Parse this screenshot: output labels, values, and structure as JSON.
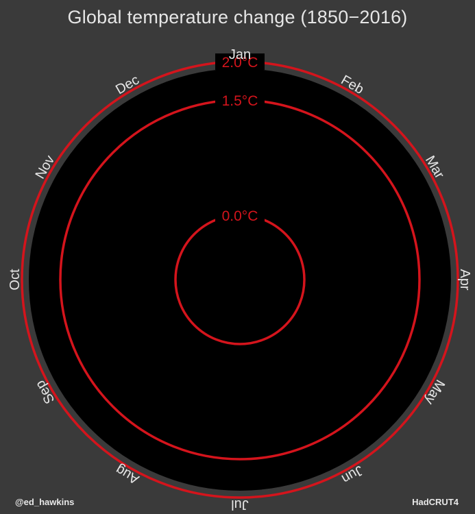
{
  "colors": {
    "background": "#3a3a3a",
    "plot_disc": "#000000",
    "ring": "#d4141c",
    "ring_label": "#d4141c",
    "text": "#e6e6e6"
  },
  "chart_data": {
    "type": "radial",
    "title": "Global temperature change (1850−2016)",
    "angular_axis": {
      "categories": [
        "Jan",
        "Feb",
        "Mar",
        "Apr",
        "May",
        "Jun",
        "Jul",
        "Aug",
        "Sep",
        "Oct",
        "Nov",
        "Dec"
      ],
      "start": "top",
      "direction": "clockwise"
    },
    "radial_axis": {
      "reference_rings": [
        {
          "value": 0.0,
          "label": "0.0°C"
        },
        {
          "value": 1.5,
          "label": "1.5°C"
        },
        {
          "value": 2.0,
          "label": "2.0°C"
        }
      ]
    },
    "series": []
  },
  "credits": {
    "left": "@ed_hawkins",
    "right": "HadCRUT4"
  }
}
